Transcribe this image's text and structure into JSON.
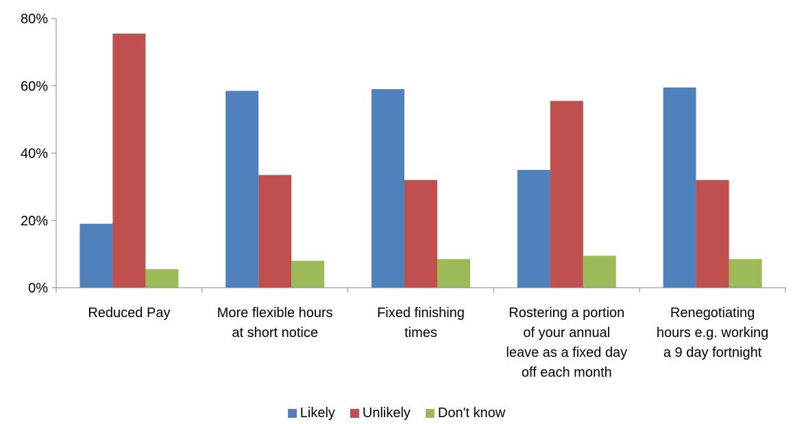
{
  "chart_data": {
    "type": "bar",
    "title": "",
    "xlabel": "",
    "ylabel": "",
    "ylim": [
      0,
      80
    ],
    "y_ticks": [
      {
        "value": 0,
        "label": "0%"
      },
      {
        "value": 20,
        "label": "20%"
      },
      {
        "value": 40,
        "label": "40%"
      },
      {
        "value": 60,
        "label": "60%"
      },
      {
        "value": 80,
        "label": "80%"
      }
    ],
    "grid": false,
    "legend_position": "bottom",
    "categories": [
      [
        "Reduced Pay"
      ],
      [
        "More flexible hours",
        "at short notice"
      ],
      [
        "Fixed finishing",
        "times"
      ],
      [
        "Rostering a portion",
        "of your annual",
        "leave as a fixed day",
        "off each month"
      ],
      [
        "Renegotiating",
        "hours e.g. working",
        "a 9 day fortnight"
      ]
    ],
    "series": [
      {
        "name": "Likely",
        "color": "#4F81BD",
        "values": [
          19,
          58.5,
          59,
          35,
          59.5
        ]
      },
      {
        "name": "Unlikely",
        "color": "#C0504D",
        "values": [
          75.5,
          33.5,
          32,
          55.5,
          32
        ]
      },
      {
        "name": "Don't know",
        "color": "#9BBB59",
        "values": [
          5.5,
          8,
          8.5,
          9.5,
          8.5
        ]
      }
    ]
  }
}
